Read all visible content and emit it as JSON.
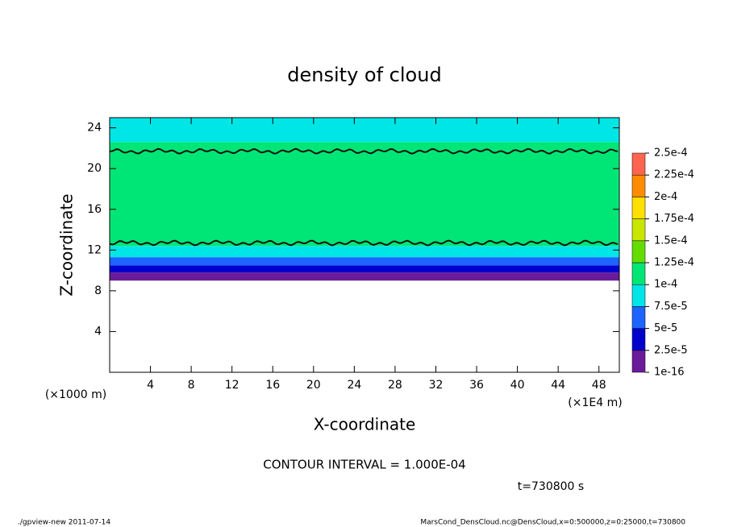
{
  "chart_data": {
    "type": "heatmap",
    "title": "density of cloud",
    "xlabel": "X-coordinate",
    "ylabel": "Z-coordinate",
    "xunit": "(×1E4 m)",
    "yunit": "(×1000 m)",
    "xlim": [
      0,
      50
    ],
    "ylim": [
      0,
      25
    ],
    "xticks": [
      4,
      8,
      12,
      16,
      20,
      24,
      28,
      32,
      36,
      40,
      44,
      48
    ],
    "yticks": [
      4,
      8,
      12,
      16,
      20,
      24
    ],
    "ybins": [
      9,
      9.8,
      10.5,
      11.3,
      12.4,
      22.6,
      25
    ],
    "values": [
      1e-05,
      3.5e-05,
      6e-05,
      8.5e-05,
      0.00011,
      8.5e-05
    ],
    "contours": [
      {
        "value": 0.0001,
        "z": 12.7
      },
      {
        "value": 0.0001,
        "z": 21.7
      }
    ],
    "levels": [
      {
        "value": 1e-16,
        "label": "1e-16"
      },
      {
        "value": 2.5e-05,
        "label": "2.5e-5"
      },
      {
        "value": 5e-05,
        "label": "5e-5"
      },
      {
        "value": 7.5e-05,
        "label": "7.5e-5"
      },
      {
        "value": 0.0001,
        "label": "1e-4"
      },
      {
        "value": 0.000125,
        "label": "1.25e-4"
      },
      {
        "value": 0.00015,
        "label": "1.5e-4"
      },
      {
        "value": 0.000175,
        "label": "1.75e-4"
      },
      {
        "value": 0.0002,
        "label": "2e-4"
      },
      {
        "value": 0.000225,
        "label": "2.25e-4"
      },
      {
        "value": 0.00025,
        "label": "2.5e-4"
      }
    ],
    "colors": [
      "#6a1b9a",
      "#0000cd",
      "#1e64ff",
      "#00e6e6",
      "#00e676",
      "#64dc00",
      "#c8e600",
      "#ffe000",
      "#ff8c00",
      "#ff6450"
    ],
    "annotations": [
      "CONTOUR INTERVAL = 1.000E-04",
      "t=730800 s"
    ],
    "footer_left": "./gpview-new  2011-07-14",
    "footer_right": "MarsCond_DensCloud.nc@DensCloud,x=0:500000,z=0:25000,t=730800"
  }
}
